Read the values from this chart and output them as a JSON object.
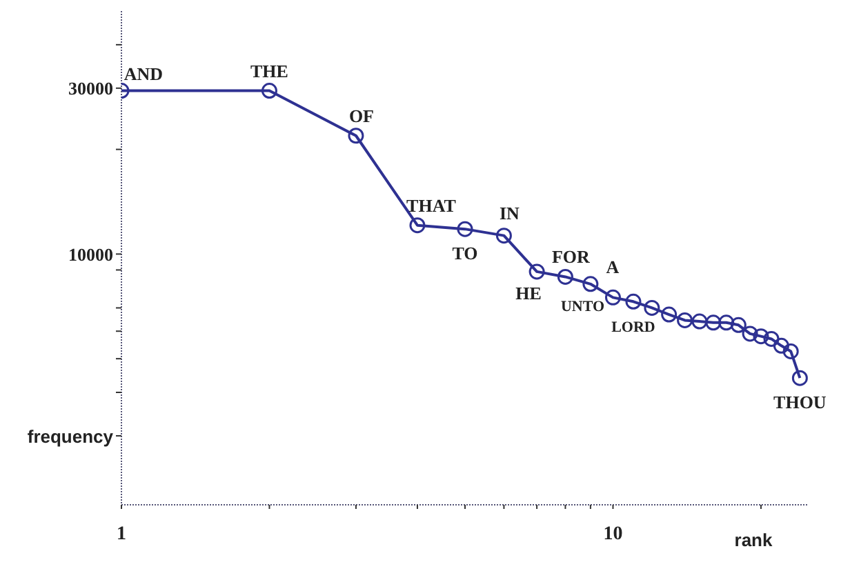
{
  "chart_data": {
    "type": "line",
    "xlabel": "rank",
    "ylabel": "frequency",
    "log": "xy",
    "marker": "circle",
    "grid": false,
    "x": [
      1,
      2,
      3,
      4,
      5,
      6,
      7,
      8,
      9,
      10,
      11,
      12,
      13,
      14,
      15,
      16,
      17,
      18,
      19,
      20,
      21,
      22,
      23,
      24
    ],
    "series": [
      {
        "color": "#2e3192",
        "values": [
          29500,
          29500,
          21900,
          12100,
          11800,
          11300,
          8900,
          8600,
          8200,
          7500,
          7300,
          7000,
          6700,
          6450,
          6400,
          6350,
          6350,
          6250,
          5900,
          5800,
          5700,
          5450,
          5250,
          4400
        ]
      }
    ],
    "xticks": [
      1,
      {
        "value": 2,
        "label": null
      },
      {
        "value": 3,
        "label": null
      },
      {
        "value": 4,
        "label": null
      },
      {
        "value": 5,
        "label": null
      },
      {
        "value": 6,
        "label": null
      },
      {
        "value": 7,
        "label": null
      },
      {
        "value": 8,
        "label": null
      },
      {
        "value": 9,
        "label": null
      },
      10,
      {
        "value": 20,
        "label": null
      }
    ],
    "xlim": [
      1,
      25
    ],
    "ylim": [
      1900,
      50000
    ],
    "yticks": [
      {
        "value": 3000,
        "label": null
      },
      {
        "value": 4000,
        "label": null
      },
      {
        "value": 5000,
        "label": null
      },
      {
        "value": 6000,
        "label": null
      },
      {
        "value": 7000,
        "label": null
      },
      {
        "value": 9000,
        "label": null
      },
      10000,
      {
        "value": 20000,
        "label": null
      },
      30000,
      {
        "value": 40000,
        "label": null
      }
    ],
    "annotations": [
      {
        "text": "AND",
        "x": 1,
        "y": 29500
      },
      {
        "text": "THE",
        "x": 2,
        "y": 29500
      },
      {
        "text": "OF",
        "x": 3,
        "y": 21900
      },
      {
        "text": "THAT",
        "x": 4,
        "y": 12100
      },
      {
        "text": "TO",
        "x": 5,
        "y": 11800
      },
      {
        "text": "IN",
        "x": 6,
        "y": 11300
      },
      {
        "text": "HE",
        "x": 7,
        "y": 8900
      },
      {
        "text": "FOR",
        "x": 8,
        "y": 8600
      },
      {
        "text": "A",
        "x": 9,
        "y": 8200
      },
      {
        "text": "UNTO",
        "x": 10,
        "y": 7500
      },
      {
        "text": "LORD",
        "x": 11,
        "y": 7300
      },
      {
        "text": "THOU",
        "x": 24,
        "y": 4400
      }
    ]
  }
}
